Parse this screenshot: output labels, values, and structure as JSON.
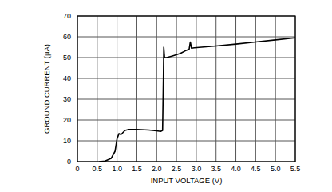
{
  "chart_data": {
    "type": "line",
    "x_label": "INPUT VOLTAGE (V)",
    "y_label": "GROUND CURRENT (µA)",
    "x": [
      0.55,
      0.7,
      0.85,
      0.95,
      1.0,
      1.05,
      1.1,
      1.2,
      1.3,
      1.5,
      1.8,
      2.0,
      2.1,
      2.15,
      2.17,
      2.18,
      2.2,
      2.25,
      2.4,
      2.6,
      2.75,
      2.82,
      2.85,
      2.88,
      2.95,
      3.5,
      4.0,
      4.5,
      5.0,
      5.5
    ],
    "values": [
      0,
      0.3,
      1.5,
      5,
      11,
      13.5,
      13,
      15,
      15.5,
      15.5,
      15.2,
      14.8,
      14.5,
      15,
      40,
      55,
      50,
      50,
      50.8,
      52,
      53.5,
      54,
      57.5,
      54.5,
      54.7,
      55.6,
      56.5,
      57.5,
      58.5,
      59.5
    ],
    "color": "#000000",
    "xlim": [
      0,
      5.5
    ],
    "ylim": [
      0,
      70
    ],
    "xticks": [
      0,
      0.5,
      {
        "value": 1,
        "label": "1.0"
      },
      1.5,
      {
        "value": 2,
        "label": "2.0"
      },
      2.5,
      {
        "value": 3,
        "label": "3.0"
      },
      3.5,
      {
        "value": 4,
        "label": "4.0"
      },
      4.5,
      {
        "value": 5,
        "label": "5.0"
      },
      5.5
    ],
    "yticks": [
      0,
      10,
      20,
      30,
      40,
      50,
      60,
      70
    ],
    "grid": true
  }
}
